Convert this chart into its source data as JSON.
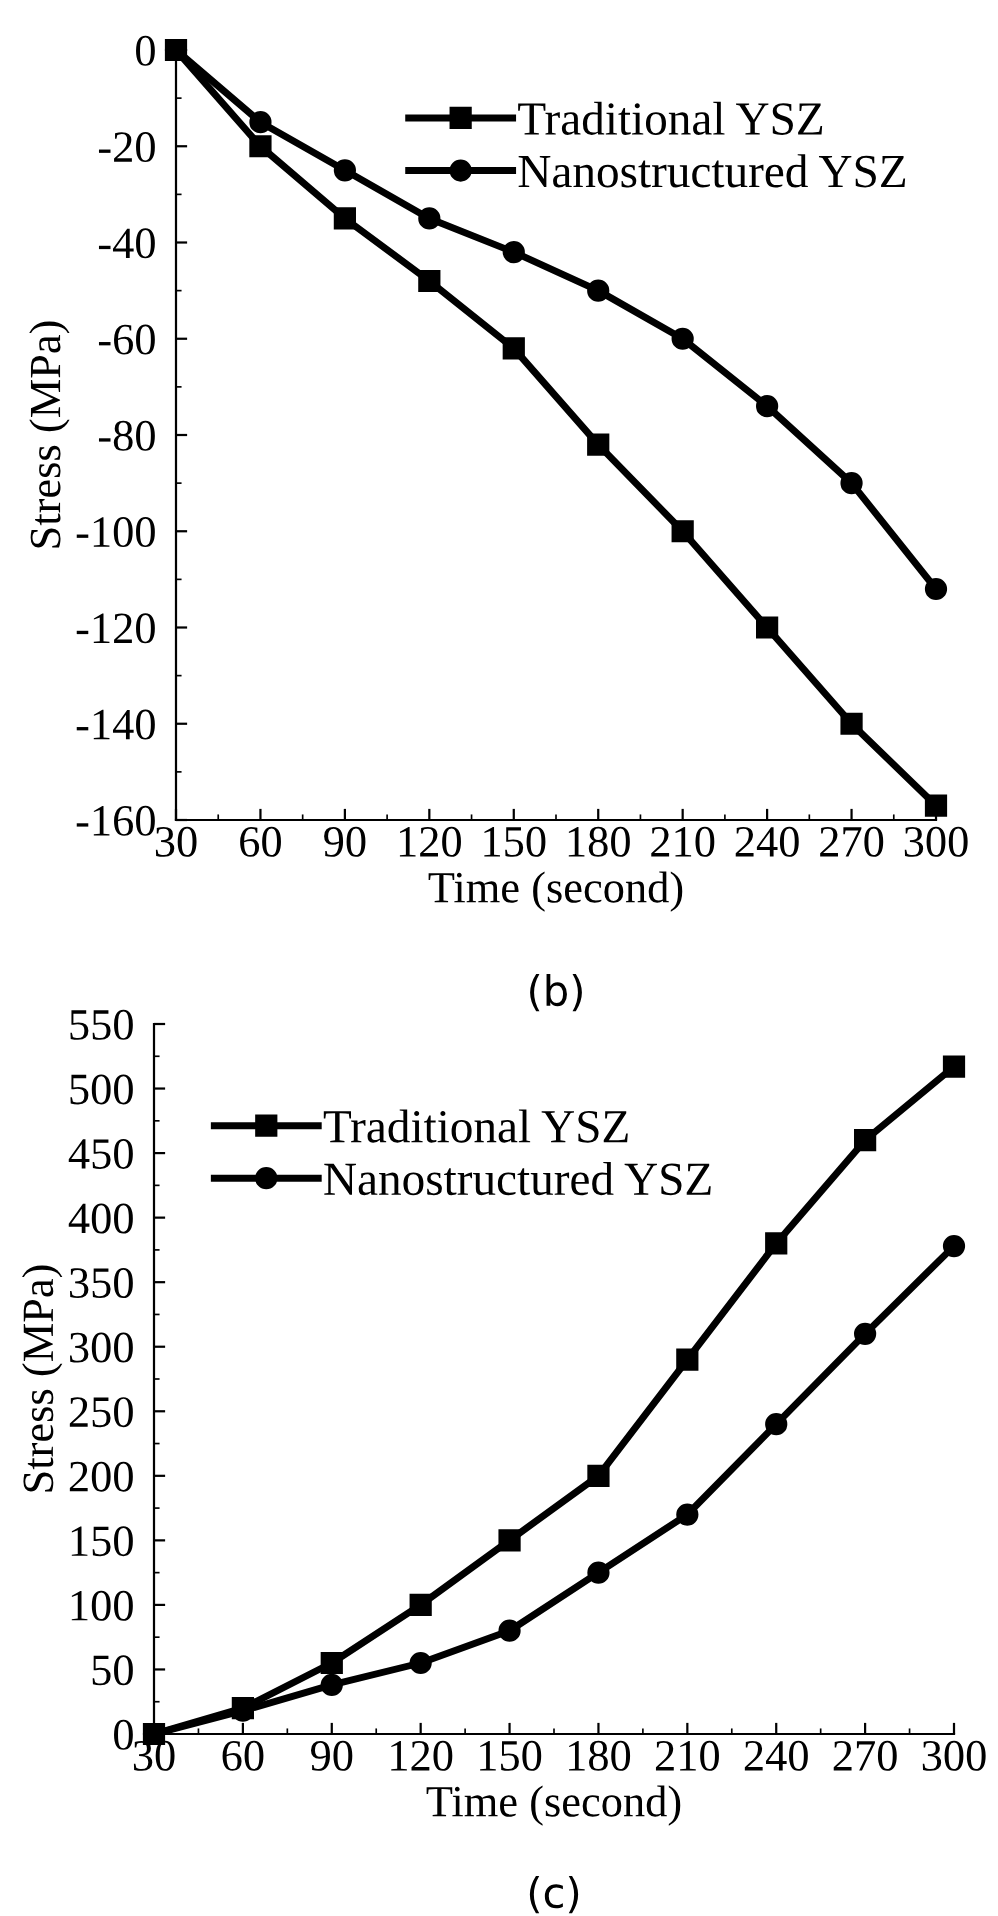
{
  "chart_data": [
    {
      "type": "line",
      "xlabel": "Time (second)",
      "ylabel": "Stress (MPa)",
      "annotations": [
        "(b)"
      ],
      "x": [
        30,
        60,
        90,
        120,
        150,
        180,
        210,
        240,
        270,
        300
      ],
      "series": [
        {
          "name": "Traditional YSZ",
          "color": "#000000",
          "marker": "square",
          "values": [
            0,
            -20,
            -35,
            -48,
            -62,
            -82,
            -100,
            -120,
            -140,
            -157
          ]
        },
        {
          "name": "Nanostructured YSZ",
          "color": "#000000",
          "marker": "circle",
          "values": [
            0,
            -15,
            -25,
            -35,
            -42,
            -50,
            -60,
            -74,
            -90,
            -112
          ]
        }
      ],
      "xlim": [
        30,
        300
      ],
      "xticks": [
        30,
        60,
        90,
        120,
        150,
        180,
        210,
        240,
        270,
        300
      ],
      "ylim": [
        -160,
        0
      ],
      "yticks": [
        -160,
        -140,
        -120,
        -100,
        -80,
        -60,
        -40,
        -20,
        0
      ],
      "legend": "top right",
      "grid": false,
      "line_style": "solid"
    },
    {
      "type": "line",
      "xlabel": "Time (second)",
      "ylabel": "Stress (MPa)",
      "annotations": [
        "(c)"
      ],
      "x": [
        30,
        60,
        90,
        120,
        150,
        180,
        210,
        240,
        270,
        300
      ],
      "series": [
        {
          "name": "Traditional YSZ",
          "color": "#000000",
          "marker": "square",
          "values": [
            0,
            20,
            55,
            100,
            150,
            200,
            290,
            380,
            460,
            517
          ]
        },
        {
          "name": "Nanostructured YSZ",
          "color": "#000000",
          "marker": "circle",
          "values": [
            0,
            18,
            38,
            55,
            80,
            125,
            170,
            240,
            310,
            378
          ]
        }
      ],
      "xlim": [
        30,
        300
      ],
      "xticks": [
        30,
        60,
        90,
        120,
        150,
        180,
        210,
        240,
        270,
        300
      ],
      "ylim": [
        0,
        550
      ],
      "yticks": [
        0,
        50,
        100,
        150,
        200,
        250,
        300,
        350,
        400,
        450,
        500,
        550
      ],
      "legend": "top left",
      "grid": false,
      "line_style": "solid"
    }
  ]
}
